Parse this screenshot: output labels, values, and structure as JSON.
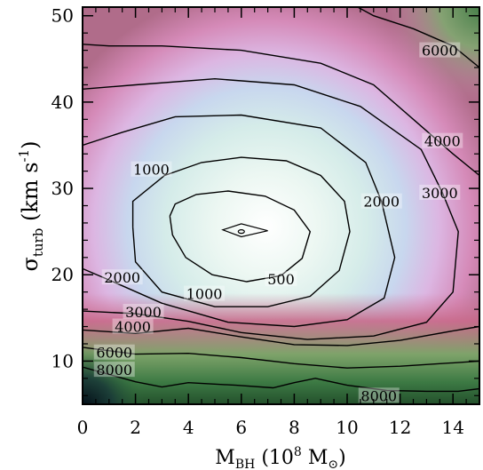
{
  "chart_data": {
    "type": "heatmap",
    "subtype": "filled contour map",
    "title": "",
    "xlabel": {
      "main": "M",
      "sub": "BH",
      "rest": " (10",
      "sup": "8",
      "tail": " M",
      "sub2": "⊙",
      "close": ")"
    },
    "ylabel": {
      "main": "σ",
      "sub": "turb",
      "rest": " (km s",
      "sup": "-1",
      "close": ")"
    },
    "xlim": [
      0,
      15
    ],
    "ylim": [
      5,
      51
    ],
    "x_ticks": [
      0,
      2,
      4,
      6,
      8,
      10,
      12,
      14
    ],
    "y_ticks": [
      10,
      20,
      30,
      40,
      50
    ],
    "x_tick_labels": [
      "0",
      "2",
      "4",
      "6",
      "8",
      "10",
      "12",
      "14"
    ],
    "y_tick_labels": [
      "10",
      "20",
      "30",
      "40",
      "50"
    ],
    "minimum": {
      "x": 6,
      "y": 25
    },
    "colormap": [
      "#000814",
      "#2f6a3a",
      "#6fa064",
      "#c06a86",
      "#dc8ab8",
      "#e6b4dd",
      "#c8d8ec",
      "#dcf0ee",
      "#ffffff"
    ],
    "contours": [
      {
        "level": 500,
        "label": "500",
        "label_pos": [
          7.5,
          19.5
        ],
        "points": [
          [
            3.3,
            26.8
          ],
          [
            3.5,
            28.2
          ],
          [
            4.3,
            29.3
          ],
          [
            5.5,
            29.7
          ],
          [
            6.9,
            29.1
          ],
          [
            8,
            27.5
          ],
          [
            8.6,
            25
          ],
          [
            8.3,
            21.9
          ],
          [
            7.5,
            19.9
          ],
          [
            6.2,
            19.2
          ],
          [
            4.9,
            20
          ],
          [
            3.9,
            22
          ],
          [
            3.4,
            24.6
          ],
          [
            3.3,
            26.8
          ]
        ]
      },
      {
        "level": 1000,
        "label": "1000",
        "label_pos": [
          2.6,
          32.2
        ],
        "label2": "1000",
        "label2_pos": [
          4.6,
          17.8
        ],
        "points": [
          [
            1.9,
            25.5
          ],
          [
            1.9,
            28.5
          ],
          [
            3.1,
            31.5
          ],
          [
            4.5,
            33
          ],
          [
            6,
            33.6
          ],
          [
            7.7,
            33.2
          ],
          [
            9,
            31.5
          ],
          [
            9.9,
            28.5
          ],
          [
            10.1,
            25
          ],
          [
            9.7,
            20.5
          ],
          [
            8.6,
            17.5
          ],
          [
            7,
            16.3
          ],
          [
            5,
            16.3
          ],
          [
            3,
            18
          ],
          [
            2,
            21.5
          ],
          [
            1.9,
            25.5
          ]
        ]
      },
      {
        "level": 2000,
        "label": "2000",
        "label_pos": [
          11.3,
          28.5
        ],
        "label2": "2000",
        "label2_pos": [
          1.5,
          19.7
        ],
        "points": [
          [
            0,
            20.7
          ],
          [
            1,
            19.4
          ],
          [
            3,
            16.7
          ],
          [
            5.5,
            14.5
          ],
          [
            8,
            14
          ],
          [
            10,
            14.8
          ],
          [
            11.4,
            17.3
          ],
          [
            11.8,
            22
          ],
          [
            11.3,
            28.5
          ],
          [
            10.7,
            33
          ],
          [
            9,
            37
          ],
          [
            6,
            38.5
          ],
          [
            3.5,
            38.3
          ],
          [
            1.5,
            36.5
          ],
          [
            0,
            35
          ]
        ]
      },
      {
        "level": 3000,
        "label": "3000",
        "label_pos": [
          13.5,
          29.5
        ],
        "label2": "3000",
        "label2_pos": [
          2.3,
          15.7
        ],
        "points": [
          [
            0,
            15.8
          ],
          [
            2,
            15.5
          ],
          [
            4,
            14.6
          ],
          [
            6,
            13.3
          ],
          [
            8.5,
            12.5
          ],
          [
            11,
            12.9
          ],
          [
            13,
            14.5
          ],
          [
            14,
            18
          ],
          [
            14.2,
            25
          ],
          [
            13.6,
            29.5
          ],
          [
            12.8,
            34.5
          ],
          [
            10.5,
            39.5
          ],
          [
            8,
            42
          ],
          [
            5,
            42.7
          ],
          [
            2,
            42
          ],
          [
            0,
            41.5
          ]
        ]
      },
      {
        "level": 4000,
        "label": "4000",
        "label_pos": [
          13.6,
          35.5
        ],
        "label2": "4000",
        "label2_pos": [
          1.9,
          14
        ],
        "points": [
          [
            0,
            13.6
          ],
          [
            2,
            13.2
          ],
          [
            4,
            13.8
          ],
          [
            6,
            12.8
          ],
          [
            8,
            11.9
          ],
          [
            10,
            11.8
          ],
          [
            12,
            12.4
          ],
          [
            14,
            13.5
          ],
          [
            15,
            14
          ]
        ]
      },
      {
        "level": 4001,
        "label": "",
        "points": [
          [
            15,
            31.5
          ],
          [
            14,
            34
          ],
          [
            12.5,
            38
          ],
          [
            11,
            42
          ],
          [
            9,
            44.5
          ],
          [
            6,
            46
          ],
          [
            3,
            46.5
          ],
          [
            1,
            46.5
          ],
          [
            0,
            46.7
          ]
        ]
      },
      {
        "level": 6000,
        "label": "6000",
        "label_pos": [
          13.5,
          46
        ],
        "label2": "6000",
        "label2_pos": [
          1.2,
          11
        ],
        "points": [
          [
            0,
            11.6
          ],
          [
            2,
            10.8
          ],
          [
            4,
            10.9
          ],
          [
            6,
            10.4
          ],
          [
            8,
            9.7
          ],
          [
            10,
            9.2
          ],
          [
            12,
            9.4
          ],
          [
            14,
            9.8
          ],
          [
            15,
            10
          ]
        ]
      },
      {
        "level": 6001,
        "label": "",
        "points": [
          [
            15,
            44
          ],
          [
            14,
            46.5
          ],
          [
            12.5,
            48.5
          ],
          [
            11,
            50
          ],
          [
            10.4,
            51
          ]
        ]
      },
      {
        "level": 8000,
        "label": "8000",
        "label_pos": [
          1.2,
          9
        ],
        "label2": "8000",
        "label2_pos": [
          11.2,
          6
        ],
        "points": [
          [
            0,
            9.3
          ],
          [
            2,
            7.6
          ],
          [
            3,
            7
          ],
          [
            4,
            7.5
          ],
          [
            5.8,
            7.2
          ],
          [
            7.2,
            6.9
          ],
          [
            8,
            7.5
          ],
          [
            8.8,
            8
          ],
          [
            10,
            7.2
          ],
          [
            11.5,
            6.6
          ],
          [
            13,
            6.5
          ],
          [
            14.2,
            6.5
          ],
          [
            15,
            6.8
          ]
        ]
      }
    ]
  }
}
